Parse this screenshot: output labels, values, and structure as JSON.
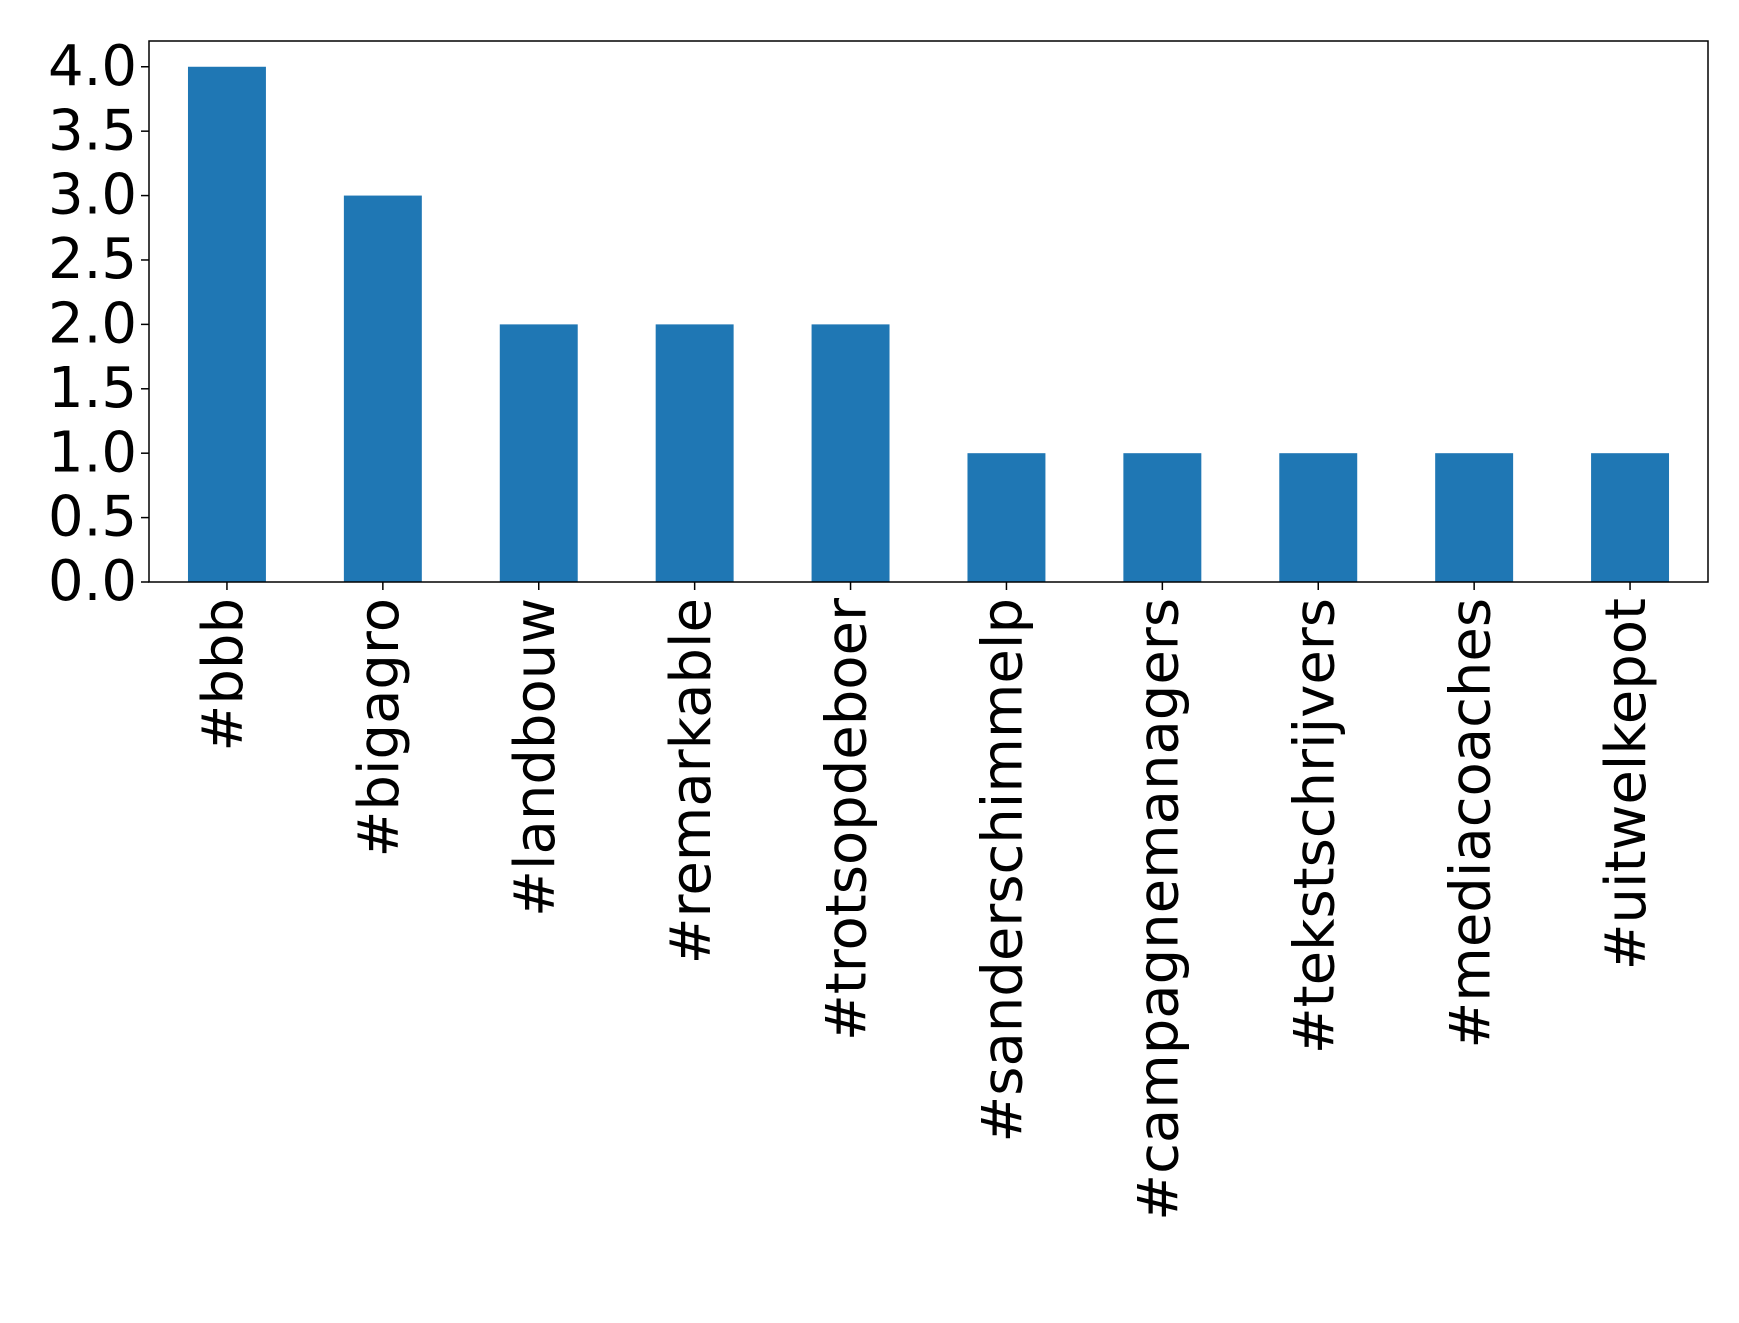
{
  "chart_data": {
    "type": "bar",
    "categories": [
      "#bbb",
      "#bigagro",
      "#landbouw",
      "#remarkable",
      "#trotsopdeboer",
      "#sanderschimmelp",
      "#campagnemanagers",
      "#tekstschrijvers",
      "#mediacoaches",
      "#uitwelkepot"
    ],
    "values": [
      4,
      3,
      2,
      2,
      2,
      1,
      1,
      1,
      1,
      1
    ],
    "color": "#1f77b4",
    "ylim": [
      0,
      4.2
    ],
    "yticks": [
      {
        "value": 0,
        "label": "0.0"
      },
      0.5,
      {
        "value": 1,
        "label": "1.0"
      },
      1.5,
      {
        "value": 2,
        "label": "2.0"
      },
      2.5,
      {
        "value": 3,
        "label": "3.0"
      },
      3.5,
      {
        "value": 4,
        "label": "4.0"
      }
    ]
  }
}
